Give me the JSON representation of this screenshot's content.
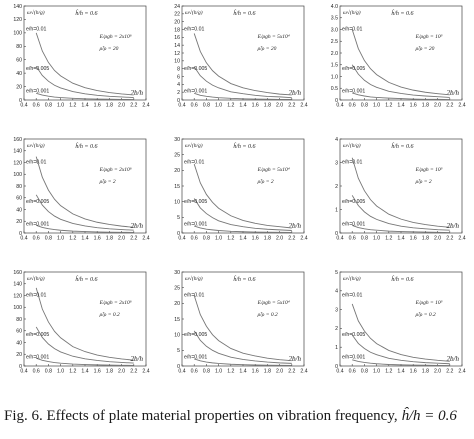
{
  "figure": {
    "caption": {
      "prefix": "Fig. 6. Effects of plate material properties on vibration frequency,",
      "formula": "ĥ/h = 0.6"
    }
  },
  "style": {
    "axis_color": "#444444",
    "curve_color": "#777777",
    "text_color": "#222222"
  },
  "chart_data": [
    {
      "type": "line",
      "xlim": [
        0.4,
        2.4
      ],
      "ylim": [
        0,
        140
      ],
      "xticks": [
        0.4,
        0.6,
        0.8,
        1.0,
        1.2,
        1.4,
        1.6,
        1.8,
        2.0,
        2.2,
        2.4
      ],
      "yticks": [
        0,
        20,
        40,
        60,
        80,
        100,
        120,
        140
      ],
      "xlabel": "2b/h",
      "ylabel": "ω√(h/g)",
      "ratio_label": "ĥ/h = 0.6",
      "params": [
        "E/ρgh = 2x10⁶",
        "ρ̂/ρ = 20"
      ],
      "series": [
        {
          "name": "e/h=0.01",
          "x": [
            0.6,
            0.7,
            0.8,
            0.9,
            1.0,
            1.2,
            1.4,
            1.6,
            1.8,
            2.0,
            2.2
          ],
          "y": [
            100,
            73,
            56,
            44,
            36,
            25,
            18.4,
            14,
            11,
            9,
            7.5
          ]
        },
        {
          "name": "e/h=0.005",
          "x": [
            0.6,
            0.7,
            0.8,
            0.9,
            1.0,
            1.2,
            1.4,
            1.6,
            1.8,
            2.0,
            2.2
          ],
          "y": [
            50,
            36.5,
            28,
            22,
            18,
            12.5,
            9.2,
            7,
            5.5,
            4.5,
            3.7
          ]
        },
        {
          "name": "e/h=0.001",
          "x": [
            0.6,
            0.7,
            0.8,
            0.9,
            1.0,
            1.2,
            1.4,
            1.6,
            1.8,
            2.0,
            2.2
          ],
          "y": [
            10,
            7.3,
            5.6,
            4.4,
            3.6,
            2.5,
            1.8,
            1.4,
            1.1,
            0.9,
            0.7
          ]
        }
      ]
    },
    {
      "type": "line",
      "xlim": [
        0.4,
        2.4
      ],
      "ylim": [
        0,
        24
      ],
      "xticks": [
        0.4,
        0.6,
        0.8,
        1.0,
        1.2,
        1.4,
        1.6,
        1.8,
        2.0,
        2.2,
        2.4
      ],
      "yticks": [
        0,
        2,
        4,
        6,
        8,
        10,
        12,
        14,
        16,
        18,
        20,
        22,
        24
      ],
      "xlabel": "2b/h",
      "ylabel": "ω√(h/g)",
      "ratio_label": "ĥ/h = 0.6",
      "params": [
        "E/ρgh = 5x10⁴",
        "ρ̂/ρ = 20"
      ],
      "series": [
        {
          "name": "e/h=0.01",
          "x": [
            0.6,
            0.7,
            0.8,
            0.9,
            1.0,
            1.2,
            1.4,
            1.6,
            1.8,
            2.0,
            2.2
          ],
          "y": [
            17,
            12.4,
            9.5,
            7.5,
            6.1,
            4.2,
            3.1,
            2.4,
            1.9,
            1.5,
            1.3
          ]
        },
        {
          "name": "e/h=0.005",
          "x": [
            0.6,
            0.7,
            0.8,
            0.9,
            1.0,
            1.2,
            1.4,
            1.6,
            1.8,
            2.0,
            2.2
          ],
          "y": [
            8.5,
            6.2,
            4.8,
            3.8,
            3.1,
            2.1,
            1.6,
            1.2,
            0.9,
            0.8,
            0.6
          ]
        },
        {
          "name": "e/h=0.001",
          "x": [
            0.6,
            0.7,
            0.8,
            0.9,
            1.0,
            1.2,
            1.4,
            1.6,
            1.8,
            2.0,
            2.2
          ],
          "y": [
            1.7,
            1.2,
            0.95,
            0.75,
            0.6,
            0.42,
            0.31,
            0.24,
            0.19,
            0.15,
            0.13
          ]
        }
      ]
    },
    {
      "type": "line",
      "xlim": [
        0.4,
        2.4
      ],
      "ylim": [
        0,
        4
      ],
      "xticks": [
        0.4,
        0.6,
        0.8,
        1.0,
        1.2,
        1.4,
        1.6,
        1.8,
        2.0,
        2.2,
        2.4
      ],
      "yticks": [
        0,
        0.5,
        1.0,
        1.5,
        2.0,
        2.5,
        3.0,
        3.5,
        4.0
      ],
      "ytick_labels": [
        "0",
        "0.5",
        "1.0",
        "1.5",
        "2.0",
        "2.5",
        "3.0",
        "3.5",
        "4.0"
      ],
      "xlabel": "2b/h",
      "ylabel": "ω√(h/g)",
      "ratio_label": "ĥ/h = 0.6",
      "params": [
        "E/ρgh = 10³",
        "ρ̂/ρ = 20"
      ],
      "series": [
        {
          "name": "e/h=0.01",
          "x": [
            0.6,
            0.7,
            0.8,
            0.9,
            1.0,
            1.2,
            1.4,
            1.6,
            1.8,
            2.0,
            2.2
          ],
          "y": [
            3.0,
            2.19,
            1.68,
            1.33,
            1.08,
            0.75,
            0.55,
            0.42,
            0.33,
            0.27,
            0.22
          ]
        },
        {
          "name": "e/h=0.005",
          "x": [
            0.6,
            0.7,
            0.8,
            0.9,
            1.0,
            1.2,
            1.4,
            1.6,
            1.8,
            2.0,
            2.2
          ],
          "y": [
            1.5,
            1.1,
            0.84,
            0.66,
            0.54,
            0.37,
            0.28,
            0.21,
            0.17,
            0.14,
            0.11
          ]
        },
        {
          "name": "e/h=0.001",
          "x": [
            0.6,
            0.7,
            0.8,
            0.9,
            1.0,
            1.2,
            1.4,
            1.6,
            1.8,
            2.0,
            2.2
          ],
          "y": [
            0.3,
            0.22,
            0.17,
            0.13,
            0.11,
            0.08,
            0.06,
            0.04,
            0.03,
            0.03,
            0.02
          ]
        }
      ]
    },
    {
      "type": "line",
      "xlim": [
        0.4,
        2.4
      ],
      "ylim": [
        0,
        160
      ],
      "xticks": [
        0.4,
        0.6,
        0.8,
        1.0,
        1.2,
        1.4,
        1.6,
        1.8,
        2.0,
        2.2,
        2.4
      ],
      "yticks": [
        0,
        20,
        40,
        60,
        80,
        100,
        120,
        140,
        160
      ],
      "xlabel": "2b/h",
      "ylabel": "ω√(h/g)",
      "ratio_label": "ĥ/h = 0.6",
      "params": [
        "E/ρgh = 2x10⁶",
        "ρ̂/ρ = 2"
      ],
      "series": [
        {
          "name": "e/h=0.01",
          "x": [
            0.6,
            0.7,
            0.8,
            0.9,
            1.0,
            1.2,
            1.4,
            1.6,
            1.8,
            2.0,
            2.2
          ],
          "y": [
            130,
            95,
            73,
            57.5,
            46.5,
            32.5,
            24,
            18.3,
            14.5,
            11.7,
            9.7
          ]
        },
        {
          "name": "e/h=0.005",
          "x": [
            0.6,
            0.7,
            0.8,
            0.9,
            1.0,
            1.2,
            1.4,
            1.6,
            1.8,
            2.0,
            2.2
          ],
          "y": [
            65,
            47.5,
            36.5,
            28.8,
            23.3,
            16.2,
            12,
            9.1,
            7.2,
            5.8,
            4.8
          ]
        },
        {
          "name": "e/h=0.001",
          "x": [
            0.6,
            0.7,
            0.8,
            0.9,
            1.0,
            1.2,
            1.4,
            1.6,
            1.8,
            2.0,
            2.2
          ],
          "y": [
            13,
            9.5,
            7.3,
            5.8,
            4.7,
            3.2,
            2.4,
            1.8,
            1.4,
            1.2,
            1.0
          ]
        }
      ]
    },
    {
      "type": "line",
      "xlim": [
        0.4,
        2.4
      ],
      "ylim": [
        0,
        30
      ],
      "xticks": [
        0.4,
        0.6,
        0.8,
        1.0,
        1.2,
        1.4,
        1.6,
        1.8,
        2.0,
        2.2,
        2.4
      ],
      "yticks": [
        0,
        5,
        10,
        15,
        20,
        25,
        30
      ],
      "xlabel": "2b/h",
      "ylabel": "ω√(h/g)",
      "ratio_label": "ĥ/h = 0.6",
      "params": [
        "E/ρgh = 5x10⁴",
        "ρ̂/ρ = 2"
      ],
      "series": [
        {
          "name": "e/h=0.01",
          "x": [
            0.6,
            0.7,
            0.8,
            0.9,
            1.0,
            1.2,
            1.4,
            1.6,
            1.8,
            2.0,
            2.2
          ],
          "y": [
            22,
            16,
            12.3,
            9.8,
            7.9,
            5.5,
            4.0,
            3.1,
            2.4,
            2.0,
            1.6
          ]
        },
        {
          "name": "e/h=0.005",
          "x": [
            0.6,
            0.7,
            0.8,
            0.9,
            1.0,
            1.2,
            1.4,
            1.6,
            1.8,
            2.0,
            2.2
          ],
          "y": [
            11,
            8,
            6.2,
            4.9,
            3.9,
            2.7,
            2.0,
            1.5,
            1.2,
            1.0,
            0.8
          ]
        },
        {
          "name": "e/h=0.001",
          "x": [
            0.6,
            0.7,
            0.8,
            0.9,
            1.0,
            1.2,
            1.4,
            1.6,
            1.8,
            2.0,
            2.2
          ],
          "y": [
            2.2,
            1.6,
            1.2,
            1.0,
            0.8,
            0.55,
            0.4,
            0.31,
            0.24,
            0.2,
            0.16
          ]
        }
      ]
    },
    {
      "type": "line",
      "xlim": [
        0.4,
        2.4
      ],
      "ylim": [
        0,
        4
      ],
      "xticks": [
        0.4,
        0.6,
        0.8,
        1.0,
        1.2,
        1.4,
        1.6,
        1.8,
        2.0,
        2.2,
        2.4
      ],
      "yticks": [
        0,
        1,
        2,
        3,
        4
      ],
      "xlabel": "2b/h",
      "ylabel": "ω√(h/g)",
      "ratio_label": "ĥ/h = 0.6",
      "params": [
        "E/ρgh = 10³",
        "ρ̂/ρ = 2"
      ],
      "series": [
        {
          "name": "e/h=0.01",
          "x": [
            0.6,
            0.7,
            0.8,
            0.9,
            1.0,
            1.2,
            1.4,
            1.6,
            1.8,
            2.0,
            2.2
          ],
          "y": [
            3.2,
            2.33,
            1.8,
            1.42,
            1.15,
            0.8,
            0.59,
            0.45,
            0.36,
            0.29,
            0.24
          ]
        },
        {
          "name": "e/h=0.005",
          "x": [
            0.6,
            0.7,
            0.8,
            0.9,
            1.0,
            1.2,
            1.4,
            1.6,
            1.8,
            2.0,
            2.2
          ],
          "y": [
            1.6,
            1.17,
            0.9,
            0.71,
            0.58,
            0.4,
            0.29,
            0.22,
            0.18,
            0.14,
            0.12
          ]
        },
        {
          "name": "e/h=0.001",
          "x": [
            0.6,
            0.7,
            0.8,
            0.9,
            1.0,
            1.2,
            1.4,
            1.6,
            1.8,
            2.0,
            2.2
          ],
          "y": [
            0.32,
            0.23,
            0.18,
            0.14,
            0.12,
            0.08,
            0.06,
            0.05,
            0.04,
            0.03,
            0.02
          ]
        }
      ]
    },
    {
      "type": "line",
      "xlim": [
        0.4,
        2.4
      ],
      "ylim": [
        0,
        160
      ],
      "xticks": [
        0.4,
        0.6,
        0.8,
        1.0,
        1.2,
        1.4,
        1.6,
        1.8,
        2.0,
        2.2,
        2.4
      ],
      "yticks": [
        0,
        20,
        40,
        60,
        80,
        100,
        120,
        140,
        160
      ],
      "xlabel": "2b/h",
      "ylabel": "ω√(h/g)",
      "ratio_label": "ĥ/h = 0.6",
      "params": [
        "E/ρgh = 2x10⁶",
        "ρ̂/ρ = 0.2"
      ],
      "series": [
        {
          "name": "e/h=0.01",
          "x": [
            0.6,
            0.7,
            0.8,
            0.9,
            1.0,
            1.2,
            1.4,
            1.6,
            1.8,
            2.0,
            2.2
          ],
          "y": [
            133,
            97,
            75,
            59,
            48,
            33,
            24.5,
            18.7,
            14.8,
            12,
            9.9
          ]
        },
        {
          "name": "e/h=0.005",
          "x": [
            0.6,
            0.7,
            0.8,
            0.9,
            1.0,
            1.2,
            1.4,
            1.6,
            1.8,
            2.0,
            2.2
          ],
          "y": [
            66.5,
            48.6,
            37.4,
            29.5,
            24,
            16.6,
            12.2,
            9.4,
            7.4,
            6,
            5
          ]
        },
        {
          "name": "e/h=0.001",
          "x": [
            0.6,
            0.7,
            0.8,
            0.9,
            1.0,
            1.2,
            1.4,
            1.6,
            1.8,
            2.0,
            2.2
          ],
          "y": [
            13.3,
            9.7,
            7.5,
            5.9,
            4.8,
            3.3,
            2.4,
            1.9,
            1.5,
            1.2,
            1.0
          ]
        }
      ]
    },
    {
      "type": "line",
      "xlim": [
        0.4,
        2.4
      ],
      "ylim": [
        0,
        30
      ],
      "xticks": [
        0.4,
        0.6,
        0.8,
        1.0,
        1.2,
        1.4,
        1.6,
        1.8,
        2.0,
        2.2,
        2.4
      ],
      "yticks": [
        0,
        5,
        10,
        15,
        20,
        25,
        30
      ],
      "xlabel": "2b/h",
      "ylabel": "ω√(h/g)",
      "ratio_label": "ĥ/h = 0.6",
      "params": [
        "E/ρgh = 5x10⁴",
        "ρ̂/ρ = 0.2"
      ],
      "series": [
        {
          "name": "e/h=0.01",
          "x": [
            0.6,
            0.7,
            0.8,
            0.9,
            1.0,
            1.2,
            1.4,
            1.6,
            1.8,
            2.0,
            2.2
          ],
          "y": [
            22.5,
            16.4,
            12.7,
            10,
            8.1,
            5.6,
            4.1,
            3.2,
            2.5,
            2.0,
            1.7
          ]
        },
        {
          "name": "e/h=0.005",
          "x": [
            0.6,
            0.7,
            0.8,
            0.9,
            1.0,
            1.2,
            1.4,
            1.6,
            1.8,
            2.0,
            2.2
          ],
          "y": [
            11.2,
            8.2,
            6.3,
            5,
            4.05,
            2.8,
            2.1,
            1.6,
            1.25,
            1.0,
            0.84
          ]
        },
        {
          "name": "e/h=0.001",
          "x": [
            0.6,
            0.7,
            0.8,
            0.9,
            1.0,
            1.2,
            1.4,
            1.6,
            1.8,
            2.0,
            2.2
          ],
          "y": [
            2.25,
            1.64,
            1.27,
            1.0,
            0.81,
            0.56,
            0.41,
            0.32,
            0.25,
            0.2,
            0.17
          ]
        }
      ]
    },
    {
      "type": "line",
      "xlim": [
        0.4,
        2.4
      ],
      "ylim": [
        0,
        5
      ],
      "xticks": [
        0.4,
        0.6,
        0.8,
        1.0,
        1.2,
        1.4,
        1.6,
        1.8,
        2.0,
        2.2,
        2.4
      ],
      "yticks": [
        0,
        1,
        2,
        3,
        4,
        5
      ],
      "xlabel": "2b/h",
      "ylabel": "ω√(h/g)",
      "ratio_label": "ĥ/h = 0.6",
      "params": [
        "E/ρgh = 10³",
        "ρ̂/ρ = 0.2"
      ],
      "series": [
        {
          "name": "e/h=0.01",
          "x": [
            0.6,
            0.7,
            0.8,
            0.9,
            1.0,
            1.2,
            1.4,
            1.6,
            1.8,
            2.0,
            2.2
          ],
          "y": [
            3.3,
            2.4,
            1.86,
            1.47,
            1.19,
            0.83,
            0.61,
            0.46,
            0.37,
            0.3,
            0.25
          ]
        },
        {
          "name": "e/h=0.005",
          "x": [
            0.6,
            0.7,
            0.8,
            0.9,
            1.0,
            1.2,
            1.4,
            1.6,
            1.8,
            2.0,
            2.2
          ],
          "y": [
            1.65,
            1.2,
            0.93,
            0.73,
            0.6,
            0.41,
            0.3,
            0.23,
            0.18,
            0.15,
            0.12
          ]
        },
        {
          "name": "e/h=0.001",
          "x": [
            0.6,
            0.7,
            0.8,
            0.9,
            1.0,
            1.2,
            1.4,
            1.6,
            1.8,
            2.0,
            2.2
          ],
          "y": [
            0.33,
            0.24,
            0.19,
            0.15,
            0.12,
            0.08,
            0.06,
            0.05,
            0.04,
            0.03,
            0.02
          ]
        }
      ]
    }
  ]
}
